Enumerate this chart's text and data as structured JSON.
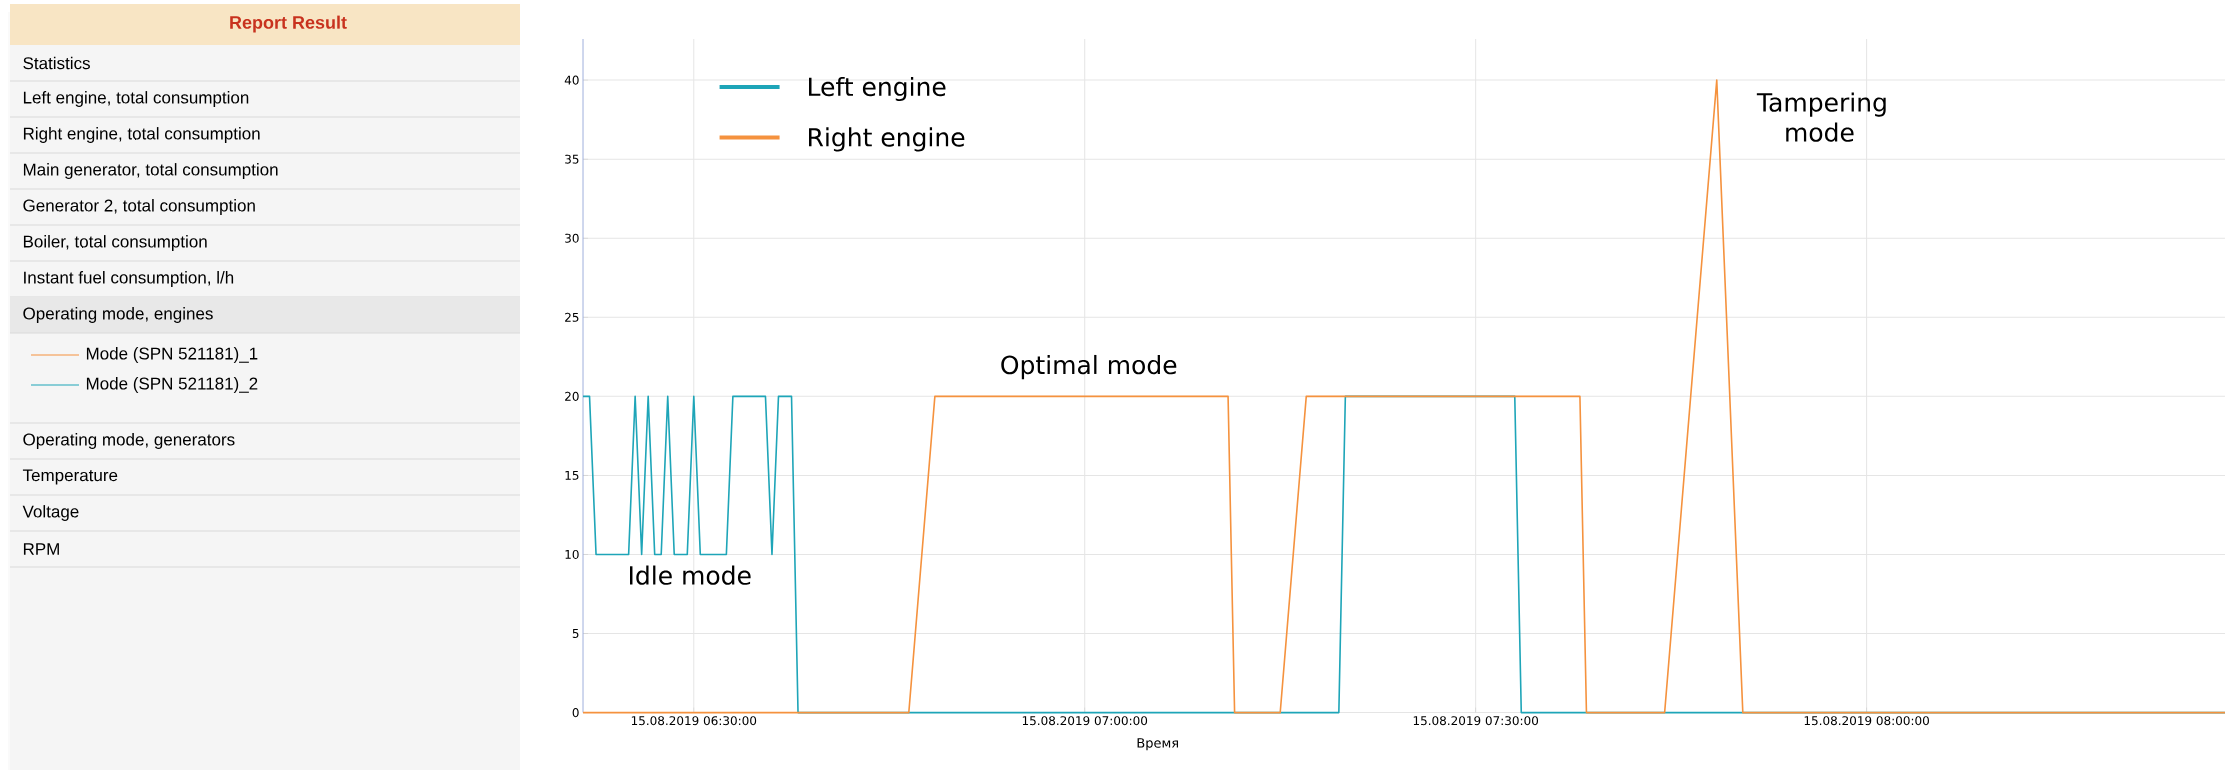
{
  "chart_data": [
    {
      "type": "other",
      "title": "Report Result",
      "annotations": [
        "Statistics",
        "Left engine, total consumption",
        "Right engine, total consumption",
        "Main generator, total consumption",
        "Generator 2, total consumption",
        "Boiler, total consumption",
        "Instant fuel consumption, l/h",
        "Operating mode, engines",
        "Mode (SPN 521181)_1",
        "Mode (SPN 521181)_2",
        "Operating mode, generators",
        "Temperature",
        "Voltage",
        "RPM"
      ]
    },
    {
      "type": "line",
      "xlabel": "Время",
      "xlim": [
        "2019-08-15T06:21:30",
        "2019-08-15T08:27:30"
      ],
      "ylim": [
        0,
        42.6
      ],
      "xticks": [
        {
          "value": "2019-08-15T06:30",
          "label": "15.08.2019 06:30:00"
        },
        {
          "value": "2019-08-15T07:00",
          "label": "15.08.2019 07:00:00"
        },
        {
          "value": "2019-08-15T07:30",
          "label": "15.08.2019 07:30:00"
        },
        {
          "value": "2019-08-15T08:00",
          "label": "15.08.2019 08:00:00"
        }
      ],
      "yticks": [
        0,
        5,
        10,
        15,
        20,
        25,
        30,
        35,
        40
      ],
      "grid": true,
      "legend": "top left",
      "series": [
        {
          "name": "Left engine",
          "color": "#1ea5b8",
          "x": [
            "2019-08-15T06:21:30",
            "2019-08-15T06:22",
            "2019-08-15T06:22:30",
            "2019-08-15T06:25",
            "2019-08-15T06:25:30",
            "2019-08-15T06:26",
            "2019-08-15T06:26:30",
            "2019-08-15T06:27",
            "2019-08-15T06:27:30",
            "2019-08-15T06:28",
            "2019-08-15T06:28:30",
            "2019-08-15T06:29:30",
            "2019-08-15T06:30",
            "2019-08-15T06:30:30",
            "2019-08-15T06:32:30",
            "2019-08-15T06:33",
            "2019-08-15T06:35:30",
            "2019-08-15T06:36",
            "2019-08-15T06:36:30",
            "2019-08-15T06:37:30",
            "2019-08-15T06:38",
            "2019-08-15T07:19:30",
            "2019-08-15T07:20",
            "2019-08-15T07:33",
            "2019-08-15T07:33:30",
            "2019-08-15T08:27:30"
          ],
          "values": [
            20,
            20,
            10,
            10,
            20,
            10,
            20,
            10,
            10,
            20,
            10,
            10,
            20,
            10,
            10,
            20,
            20,
            10,
            20,
            20,
            0,
            0,
            20,
            20,
            0,
            0
          ]
        },
        {
          "name": "Right engine",
          "color": "#f5923e",
          "x": [
            "2019-08-15T06:21:30",
            "2019-08-15T06:46:30",
            "2019-08-15T06:48:30",
            "2019-08-15T07:11",
            "2019-08-15T07:11:30",
            "2019-08-15T07:15",
            "2019-08-15T07:17",
            "2019-08-15T07:38",
            "2019-08-15T07:38:30",
            "2019-08-15T07:44:30",
            "2019-08-15T07:48:30",
            "2019-08-15T07:50:30",
            "2019-08-15T08:27:30"
          ],
          "values": [
            0,
            0,
            20,
            20,
            0,
            0,
            20,
            20,
            0,
            0,
            40,
            0,
            0
          ]
        }
      ],
      "annotations": [
        "Idle mode",
        "Optimal mode",
        "Tampering mode"
      ]
    }
  ]
}
